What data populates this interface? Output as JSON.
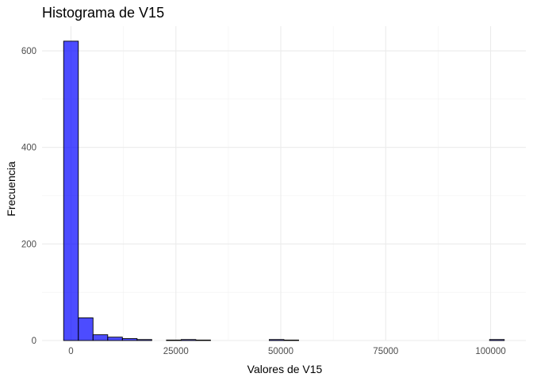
{
  "chart_data": {
    "type": "bar",
    "title": "Histograma de V15",
    "xlabel": "Valores de V15",
    "ylabel": "Frecuencia",
    "bin_width": 3500,
    "bins": [
      {
        "x0": -1750,
        "x1": 1750,
        "count": 620
      },
      {
        "x0": 1750,
        "x1": 5250,
        "count": 47
      },
      {
        "x0": 5250,
        "x1": 8750,
        "count": 12
      },
      {
        "x0": 8750,
        "x1": 12250,
        "count": 7
      },
      {
        "x0": 12250,
        "x1": 15750,
        "count": 4
      },
      {
        "x0": 15750,
        "x1": 19250,
        "count": 2
      },
      {
        "x0": 19250,
        "x1": 22750,
        "count": 0
      },
      {
        "x0": 22750,
        "x1": 26250,
        "count": 1
      },
      {
        "x0": 26250,
        "x1": 29750,
        "count": 2
      },
      {
        "x0": 29750,
        "x1": 33250,
        "count": 1
      },
      {
        "x0": 33250,
        "x1": 36750,
        "count": 0
      },
      {
        "x0": 36750,
        "x1": 40250,
        "count": 0
      },
      {
        "x0": 40250,
        "x1": 43750,
        "count": 0
      },
      {
        "x0": 43750,
        "x1": 47250,
        "count": 0
      },
      {
        "x0": 47250,
        "x1": 50750,
        "count": 2
      },
      {
        "x0": 50750,
        "x1": 54250,
        "count": 1
      },
      {
        "x0": 54250,
        "x1": 57750,
        "count": 0
      },
      {
        "x0": 57750,
        "x1": 61250,
        "count": 0
      },
      {
        "x0": 61250,
        "x1": 64750,
        "count": 0
      },
      {
        "x0": 64750,
        "x1": 68250,
        "count": 0
      },
      {
        "x0": 68250,
        "x1": 71750,
        "count": 0
      },
      {
        "x0": 71750,
        "x1": 75250,
        "count": 0
      },
      {
        "x0": 75250,
        "x1": 78750,
        "count": 0
      },
      {
        "x0": 78750,
        "x1": 82250,
        "count": 0
      },
      {
        "x0": 82250,
        "x1": 85750,
        "count": 0
      },
      {
        "x0": 85750,
        "x1": 89250,
        "count": 0
      },
      {
        "x0": 89250,
        "x1": 92750,
        "count": 0
      },
      {
        "x0": 92750,
        "x1": 96250,
        "count": 0
      },
      {
        "x0": 96250,
        "x1": 99750,
        "count": 0
      },
      {
        "x0": 99750,
        "x1": 103250,
        "count": 2
      }
    ],
    "x_ticks": [
      {
        "value": 0,
        "label": "0"
      },
      {
        "value": 25000,
        "label": "25000"
      },
      {
        "value": 50000,
        "label": "50000"
      },
      {
        "value": 75000,
        "label": "75000"
      },
      {
        "value": 100000,
        "label": "100000"
      }
    ],
    "y_ticks": [
      {
        "value": 0,
        "label": "0"
      },
      {
        "value": 200,
        "label": "200"
      },
      {
        "value": 400,
        "label": "400"
      },
      {
        "value": 600,
        "label": "600"
      }
    ],
    "xlim": [
      -6900,
      108400
    ],
    "ylim": [
      0,
      651
    ],
    "grid": true,
    "colors": {
      "fill": "#0000ff",
      "fill_opacity": 0.7,
      "outline": "#000000",
      "grid_major": "#ebebeb",
      "grid_minor": "#f2f2f2",
      "tick_text": "#4d4d4d",
      "background": "#ffffff"
    }
  }
}
